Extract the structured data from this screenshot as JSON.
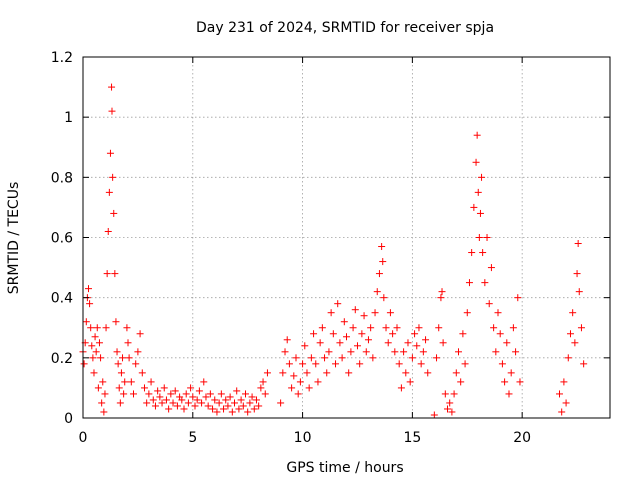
{
  "chart_data": {
    "type": "scatter",
    "title": "Day 231 of 2024, SRMTID for receiver spja",
    "xlabel": "GPS time / hours",
    "ylabel": "SRMTID / TECUs",
    "xlim": [
      0,
      24
    ],
    "ylim": [
      0,
      1.2
    ],
    "xticks": [
      0,
      5,
      10,
      15,
      20
    ],
    "xtick_labels": [
      "0",
      "5",
      "10",
      "15",
      "20"
    ],
    "yticks": [
      0,
      0.2,
      0.4,
      0.6,
      0.8,
      1.0,
      1.2
    ],
    "ytick_labels": [
      "0",
      "0.2",
      "0.4",
      "0.6",
      "0.8",
      "1",
      "1.2"
    ],
    "grid": true,
    "marker": "+",
    "color": "#ff0000",
    "series": [
      {
        "name": "SRMTID",
        "points": [
          [
            0.0,
            0.22
          ],
          [
            0.05,
            0.18
          ],
          [
            0.1,
            0.25
          ],
          [
            0.15,
            0.32
          ],
          [
            0.2,
            0.4
          ],
          [
            0.25,
            0.43
          ],
          [
            0.3,
            0.38
          ],
          [
            0.35,
            0.3
          ],
          [
            0.4,
            0.24
          ],
          [
            0.45,
            0.2
          ],
          [
            0.5,
            0.15
          ],
          [
            0.55,
            0.27
          ],
          [
            0.6,
            0.22
          ],
          [
            0.65,
            0.3
          ],
          [
            0.7,
            0.1
          ],
          [
            0.75,
            0.25
          ],
          [
            0.8,
            0.2
          ],
          [
            0.85,
            0.05
          ],
          [
            0.9,
            0.12
          ],
          [
            0.95,
            0.02
          ],
          [
            1.0,
            0.08
          ],
          [
            1.05,
            0.3
          ],
          [
            1.1,
            0.48
          ],
          [
            1.15,
            0.62
          ],
          [
            1.2,
            0.75
          ],
          [
            1.25,
            0.88
          ],
          [
            1.3,
            1.1
          ],
          [
            1.32,
            1.02
          ],
          [
            1.35,
            0.8
          ],
          [
            1.4,
            0.68
          ],
          [
            1.45,
            0.48
          ],
          [
            1.5,
            0.32
          ],
          [
            1.55,
            0.22
          ],
          [
            1.6,
            0.18
          ],
          [
            1.65,
            0.1
          ],
          [
            1.7,
            0.05
          ],
          [
            1.75,
            0.15
          ],
          [
            1.8,
            0.2
          ],
          [
            1.85,
            0.08
          ],
          [
            1.9,
            0.12
          ],
          [
            2.0,
            0.3
          ],
          [
            2.05,
            0.25
          ],
          [
            2.1,
            0.2
          ],
          [
            2.2,
            0.12
          ],
          [
            2.3,
            0.08
          ],
          [
            2.4,
            0.18
          ],
          [
            2.5,
            0.22
          ],
          [
            2.6,
            0.28
          ],
          [
            2.7,
            0.15
          ],
          [
            2.8,
            0.1
          ],
          [
            2.9,
            0.05
          ],
          [
            3.0,
            0.08
          ],
          [
            3.1,
            0.12
          ],
          [
            3.2,
            0.06
          ],
          [
            3.3,
            0.04
          ],
          [
            3.4,
            0.09
          ],
          [
            3.5,
            0.07
          ],
          [
            3.6,
            0.05
          ],
          [
            3.7,
            0.1
          ],
          [
            3.8,
            0.06
          ],
          [
            3.9,
            0.03
          ],
          [
            4.0,
            0.08
          ],
          [
            4.1,
            0.05
          ],
          [
            4.2,
            0.09
          ],
          [
            4.3,
            0.04
          ],
          [
            4.4,
            0.07
          ],
          [
            4.5,
            0.06
          ],
          [
            4.6,
            0.03
          ],
          [
            4.7,
            0.08
          ],
          [
            4.8,
            0.05
          ],
          [
            4.9,
            0.1
          ],
          [
            5.0,
            0.07
          ],
          [
            5.1,
            0.04
          ],
          [
            5.2,
            0.06
          ],
          [
            5.3,
            0.09
          ],
          [
            5.4,
            0.05
          ],
          [
            5.5,
            0.12
          ],
          [
            5.6,
            0.07
          ],
          [
            5.7,
            0.04
          ],
          [
            5.8,
            0.08
          ],
          [
            5.9,
            0.03
          ],
          [
            6.0,
            0.06
          ],
          [
            6.1,
            0.02
          ],
          [
            6.2,
            0.05
          ],
          [
            6.3,
            0.08
          ],
          [
            6.4,
            0.03
          ],
          [
            6.5,
            0.06
          ],
          [
            6.6,
            0.04
          ],
          [
            6.7,
            0.07
          ],
          [
            6.8,
            0.02
          ],
          [
            6.9,
            0.05
          ],
          [
            7.0,
            0.09
          ],
          [
            7.1,
            0.03
          ],
          [
            7.2,
            0.06
          ],
          [
            7.3,
            0.04
          ],
          [
            7.4,
            0.08
          ],
          [
            7.5,
            0.02
          ],
          [
            7.6,
            0.05
          ],
          [
            7.7,
            0.07
          ],
          [
            7.8,
            0.03
          ],
          [
            7.9,
            0.06
          ],
          [
            8.0,
            0.04
          ],
          [
            8.1,
            0.1
          ],
          [
            8.2,
            0.12
          ],
          [
            8.3,
            0.08
          ],
          [
            8.4,
            0.15
          ],
          [
            9.0,
            0.05
          ],
          [
            9.1,
            0.15
          ],
          [
            9.2,
            0.22
          ],
          [
            9.3,
            0.26
          ],
          [
            9.4,
            0.18
          ],
          [
            9.5,
            0.1
          ],
          [
            9.6,
            0.14
          ],
          [
            9.7,
            0.2
          ],
          [
            9.8,
            0.08
          ],
          [
            9.9,
            0.12
          ],
          [
            10.0,
            0.18
          ],
          [
            10.1,
            0.24
          ],
          [
            10.2,
            0.15
          ],
          [
            10.3,
            0.1
          ],
          [
            10.4,
            0.2
          ],
          [
            10.5,
            0.28
          ],
          [
            10.6,
            0.18
          ],
          [
            10.7,
            0.12
          ],
          [
            10.8,
            0.25
          ],
          [
            10.9,
            0.3
          ],
          [
            11.0,
            0.2
          ],
          [
            11.1,
            0.15
          ],
          [
            11.2,
            0.22
          ],
          [
            11.3,
            0.35
          ],
          [
            11.4,
            0.28
          ],
          [
            11.5,
            0.18
          ],
          [
            11.6,
            0.38
          ],
          [
            11.7,
            0.25
          ],
          [
            11.8,
            0.2
          ],
          [
            11.9,
            0.32
          ],
          [
            12.0,
            0.27
          ],
          [
            12.1,
            0.15
          ],
          [
            12.2,
            0.22
          ],
          [
            12.3,
            0.3
          ],
          [
            12.4,
            0.36
          ],
          [
            12.5,
            0.24
          ],
          [
            12.6,
            0.18
          ],
          [
            12.7,
            0.28
          ],
          [
            12.8,
            0.34
          ],
          [
            12.9,
            0.22
          ],
          [
            13.0,
            0.26
          ],
          [
            13.1,
            0.3
          ],
          [
            13.2,
            0.2
          ],
          [
            13.3,
            0.35
          ],
          [
            13.4,
            0.42
          ],
          [
            13.5,
            0.48
          ],
          [
            13.6,
            0.57
          ],
          [
            13.65,
            0.52
          ],
          [
            13.7,
            0.4
          ],
          [
            13.8,
            0.3
          ],
          [
            13.9,
            0.25
          ],
          [
            14.0,
            0.35
          ],
          [
            14.1,
            0.28
          ],
          [
            14.2,
            0.22
          ],
          [
            14.3,
            0.3
          ],
          [
            14.4,
            0.18
          ],
          [
            14.5,
            0.1
          ],
          [
            14.6,
            0.22
          ],
          [
            14.7,
            0.15
          ],
          [
            14.8,
            0.25
          ],
          [
            14.9,
            0.12
          ],
          [
            15.0,
            0.2
          ],
          [
            15.1,
            0.28
          ],
          [
            15.2,
            0.24
          ],
          [
            15.3,
            0.3
          ],
          [
            15.4,
            0.18
          ],
          [
            15.5,
            0.22
          ],
          [
            15.6,
            0.26
          ],
          [
            15.7,
            0.15
          ],
          [
            16.0,
            0.01
          ],
          [
            16.1,
            0.2
          ],
          [
            16.2,
            0.3
          ],
          [
            16.3,
            0.4
          ],
          [
            16.35,
            0.42
          ],
          [
            16.4,
            0.25
          ],
          [
            16.5,
            0.08
          ],
          [
            16.6,
            0.03
          ],
          [
            16.7,
            0.05
          ],
          [
            16.8,
            0.02
          ],
          [
            16.9,
            0.08
          ],
          [
            17.0,
            0.15
          ],
          [
            17.1,
            0.22
          ],
          [
            17.2,
            0.12
          ],
          [
            17.3,
            0.28
          ],
          [
            17.4,
            0.18
          ],
          [
            17.5,
            0.35
          ],
          [
            17.6,
            0.45
          ],
          [
            17.7,
            0.55
          ],
          [
            17.8,
            0.7
          ],
          [
            17.9,
            0.85
          ],
          [
            17.95,
            0.94
          ],
          [
            18.0,
            0.75
          ],
          [
            18.05,
            0.6
          ],
          [
            18.1,
            0.68
          ],
          [
            18.15,
            0.8
          ],
          [
            18.2,
            0.55
          ],
          [
            18.3,
            0.45
          ],
          [
            18.4,
            0.6
          ],
          [
            18.5,
            0.38
          ],
          [
            18.6,
            0.5
          ],
          [
            18.7,
            0.3
          ],
          [
            18.8,
            0.22
          ],
          [
            18.9,
            0.35
          ],
          [
            19.0,
            0.28
          ],
          [
            19.1,
            0.18
          ],
          [
            19.2,
            0.12
          ],
          [
            19.3,
            0.25
          ],
          [
            19.4,
            0.08
          ],
          [
            19.5,
            0.15
          ],
          [
            19.6,
            0.3
          ],
          [
            19.7,
            0.22
          ],
          [
            19.8,
            0.4
          ],
          [
            19.9,
            0.12
          ],
          [
            21.7,
            0.08
          ],
          [
            21.8,
            0.02
          ],
          [
            21.9,
            0.12
          ],
          [
            22.0,
            0.05
          ],
          [
            22.1,
            0.2
          ],
          [
            22.2,
            0.28
          ],
          [
            22.3,
            0.35
          ],
          [
            22.4,
            0.25
          ],
          [
            22.5,
            0.48
          ],
          [
            22.55,
            0.58
          ],
          [
            22.6,
            0.42
          ],
          [
            22.7,
            0.3
          ],
          [
            22.8,
            0.18
          ]
        ]
      }
    ]
  }
}
